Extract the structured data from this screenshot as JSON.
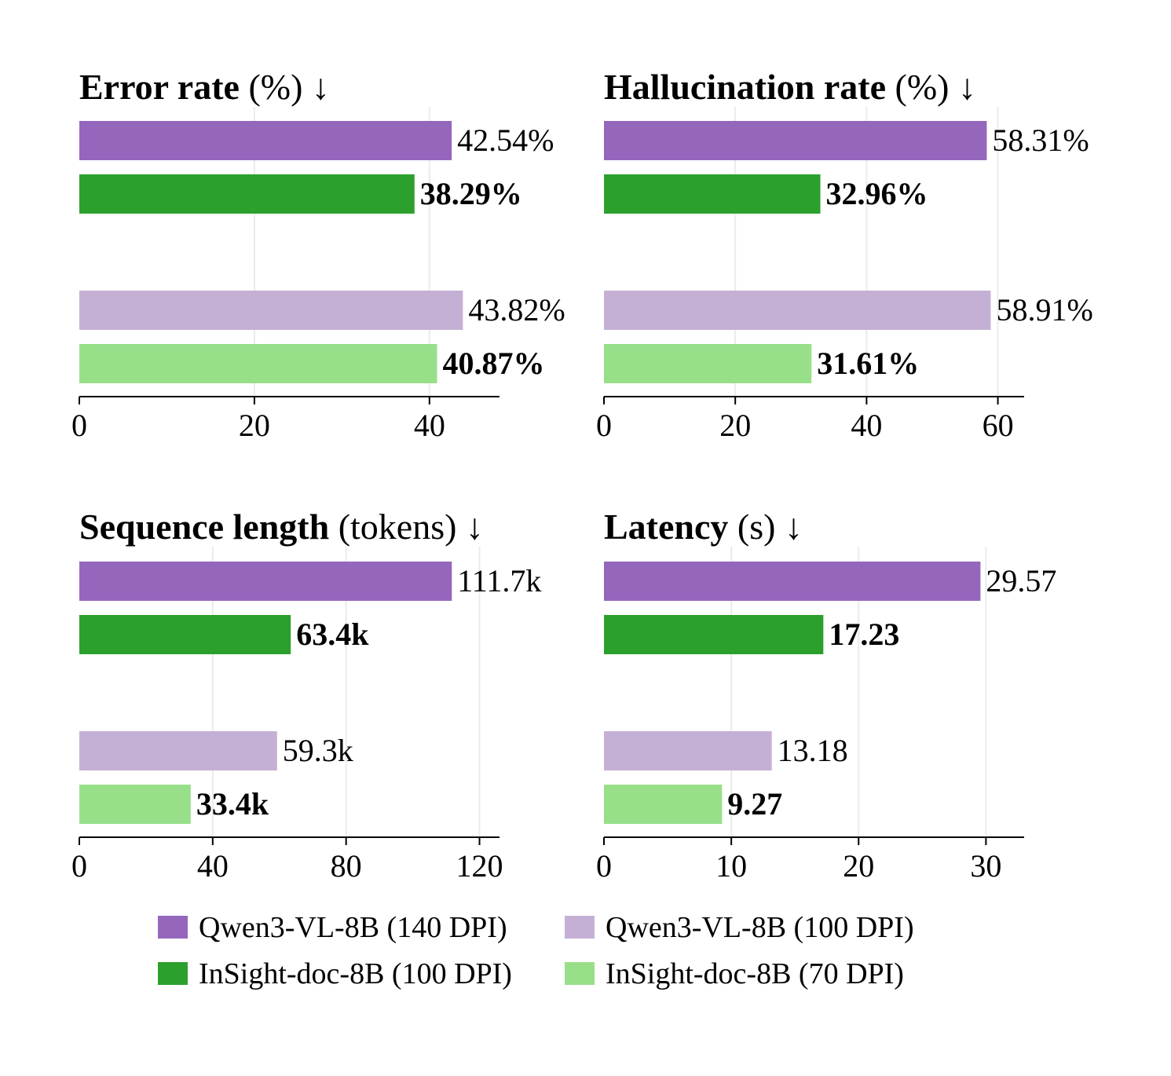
{
  "legend_entries": [
    {
      "label": "Qwen3-VL-8B (140 DPI)",
      "color": "#9467bd"
    },
    {
      "label": "Qwen3-VL-8B (100 DPI)",
      "color": "#c5b0d5"
    },
    {
      "label": "InSight-doc-8B (100 DPI)",
      "color": "#2ca02c"
    },
    {
      "label": "InSight-doc-8B (70 DPI)",
      "color": "#98df8a"
    }
  ],
  "chart_data": [
    {
      "type": "bar",
      "orientation": "horizontal",
      "title": "Error rate",
      "title_unit": "(%)",
      "title_arrow": "↓",
      "xlim": [
        0,
        48
      ],
      "xticks": [
        "0",
        "20",
        "40"
      ],
      "xtick_values": [
        0,
        20,
        40
      ],
      "grid": true,
      "bars": [
        {
          "series": "Qwen3-VL-8B (140 DPI)",
          "value": 42.54,
          "label": "42.54%",
          "bold": false,
          "color": "#9467bd"
        },
        {
          "series": "InSight-doc-8B (100 DPI)",
          "value": 38.29,
          "label": "38.29%",
          "bold": true,
          "color": "#2ca02c"
        },
        {
          "series": "Qwen3-VL-8B (100 DPI)",
          "value": 43.82,
          "label": "43.82%",
          "bold": false,
          "color": "#c5b0d5"
        },
        {
          "series": "InSight-doc-8B (70 DPI)",
          "value": 40.87,
          "label": "40.87%",
          "bold": true,
          "color": "#98df8a"
        }
      ]
    },
    {
      "type": "bar",
      "orientation": "horizontal",
      "title": "Hallucination rate",
      "title_unit": "(%)",
      "title_arrow": "↓",
      "xlim": [
        0,
        64
      ],
      "xticks": [
        "0",
        "20",
        "40",
        "60"
      ],
      "xtick_values": [
        0,
        20,
        40,
        60
      ],
      "grid": true,
      "bars": [
        {
          "series": "Qwen3-VL-8B (140 DPI)",
          "value": 58.31,
          "label": "58.31%",
          "bold": false,
          "color": "#9467bd"
        },
        {
          "series": "InSight-doc-8B (100 DPI)",
          "value": 32.96,
          "label": "32.96%",
          "bold": true,
          "color": "#2ca02c"
        },
        {
          "series": "Qwen3-VL-8B (100 DPI)",
          "value": 58.91,
          "label": "58.91%",
          "bold": false,
          "color": "#c5b0d5"
        },
        {
          "series": "InSight-doc-8B (70 DPI)",
          "value": 31.61,
          "label": "31.61%",
          "bold": true,
          "color": "#98df8a"
        }
      ]
    },
    {
      "type": "bar",
      "orientation": "horizontal",
      "title": "Sequence length",
      "title_unit": "(tokens)",
      "title_arrow": "↓",
      "xlim": [
        0,
        126
      ],
      "xticks": [
        "0",
        "40",
        "80",
        "120"
      ],
      "xtick_values": [
        0,
        40,
        80,
        120
      ],
      "grid": true,
      "bars": [
        {
          "series": "Qwen3-VL-8B (140 DPI)",
          "value": 111.7,
          "label": "111.7k",
          "bold": false,
          "color": "#9467bd"
        },
        {
          "series": "InSight-doc-8B (100 DPI)",
          "value": 63.4,
          "label": "63.4k",
          "bold": true,
          "color": "#2ca02c"
        },
        {
          "series": "Qwen3-VL-8B (100 DPI)",
          "value": 59.3,
          "label": "59.3k",
          "bold": false,
          "color": "#c5b0d5"
        },
        {
          "series": "InSight-doc-8B (70 DPI)",
          "value": 33.4,
          "label": "33.4k",
          "bold": true,
          "color": "#98df8a"
        }
      ]
    },
    {
      "type": "bar",
      "orientation": "horizontal",
      "title": "Latency",
      "title_unit": "(s)",
      "title_arrow": "↓",
      "xlim": [
        0,
        33
      ],
      "xticks": [
        "0",
        "10",
        "20",
        "30"
      ],
      "xtick_values": [
        0,
        10,
        20,
        30
      ],
      "grid": true,
      "bars": [
        {
          "series": "Qwen3-VL-8B (140 DPI)",
          "value": 29.57,
          "label": "29.57",
          "bold": false,
          "color": "#9467bd"
        },
        {
          "series": "InSight-doc-8B (100 DPI)",
          "value": 17.23,
          "label": "17.23",
          "bold": true,
          "color": "#2ca02c"
        },
        {
          "series": "Qwen3-VL-8B (100 DPI)",
          "value": 13.18,
          "label": "13.18",
          "bold": false,
          "color": "#c5b0d5"
        },
        {
          "series": "InSight-doc-8B (70 DPI)",
          "value": 9.27,
          "label": "9.27",
          "bold": true,
          "color": "#98df8a"
        }
      ]
    }
  ]
}
